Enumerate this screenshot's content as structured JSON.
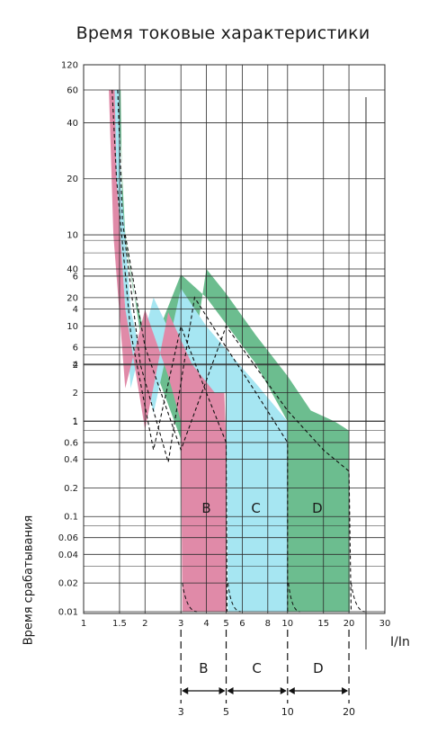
{
  "title": "Время токовые характеристики",
  "ylabel": "Время срабатывания",
  "xlabel": "I/In",
  "colors": {
    "B": "#e08aa8",
    "C": "#a6e6f2",
    "D": "#6cbd8f",
    "grid": "#2b2b2b",
    "dash": "#111111"
  },
  "chart_data": {
    "type": "area",
    "x_scale": "log",
    "x_ticks": [
      "1",
      "1.5",
      "2",
      "3",
      "4",
      "5",
      "6",
      "8",
      "10",
      "15",
      "20",
      "30"
    ],
    "x_tick_values": [
      1,
      1.5,
      2,
      3,
      4,
      5,
      6,
      8,
      10,
      15,
      20,
      30
    ],
    "y_ticks_minutes": [
      "120",
      "60",
      "40",
      "20",
      "10",
      "6",
      "4",
      "2",
      "1"
    ],
    "y_ticks_seconds": [
      "40",
      "20",
      "10",
      "6",
      "4",
      "2",
      "1",
      "0.6",
      "0.4",
      "0.2",
      "0.1",
      "0.06",
      "0.04",
      "0.02",
      "0.01"
    ],
    "grid": true,
    "series": [
      {
        "name": "B",
        "band": [
          3,
          5
        ],
        "upper_time": [
          [
            1.3,
            "60 min"
          ],
          [
            1.5,
            "10 min"
          ],
          [
            2,
            "1 min"
          ],
          [
            3,
            "6 s"
          ],
          [
            4.4,
            "2 s"
          ],
          [
            5,
            "2 s"
          ]
        ],
        "lower_time": [
          [
            1.3,
            "60 min"
          ],
          [
            1.5,
            "5 min"
          ],
          [
            2,
            "20 s"
          ],
          [
            3,
            "2 s"
          ],
          [
            4.4,
            "0.6 s"
          ],
          [
            5,
            "0.6 s"
          ]
        ]
      },
      {
        "name": "C",
        "band": [
          5,
          10
        ],
        "upper_time": [
          [
            1.4,
            "60 min"
          ],
          [
            2,
            "1 min"
          ],
          [
            3,
            "20 s"
          ],
          [
            5,
            "4 s"
          ],
          [
            8,
            "1 s"
          ],
          [
            10,
            "1 s"
          ]
        ],
        "lower_time": [
          [
            1.3,
            "60 min"
          ],
          [
            2,
            "1 min"
          ],
          [
            3,
            "6 s"
          ],
          [
            5,
            "0.6 s"
          ],
          [
            10,
            "0.6 s"
          ]
        ]
      },
      {
        "name": "D",
        "band": [
          10,
          20
        ],
        "upper_time": [
          [
            1.5,
            "60 min"
          ],
          [
            2,
            "4 min"
          ],
          [
            3,
            "40 s"
          ],
          [
            5,
            "10 s"
          ],
          [
            10,
            "2 s"
          ],
          [
            15,
            "1 s"
          ],
          [
            20,
            "0.8 s"
          ]
        ],
        "lower_time": [
          [
            1.4,
            "60 min"
          ],
          [
            3,
            "20 s"
          ],
          [
            5,
            "6 s"
          ],
          [
            10,
            "1 s"
          ],
          [
            20,
            "0.3 s"
          ]
        ]
      }
    ],
    "bands": [
      {
        "label": "B",
        "from": "3",
        "to": "5"
      },
      {
        "label": "C",
        "from": "5",
        "to": "10"
      },
      {
        "label": "D",
        "from": "10",
        "to": "20"
      }
    ],
    "band_ticks": [
      "3",
      "5",
      "10",
      "20"
    ]
  }
}
